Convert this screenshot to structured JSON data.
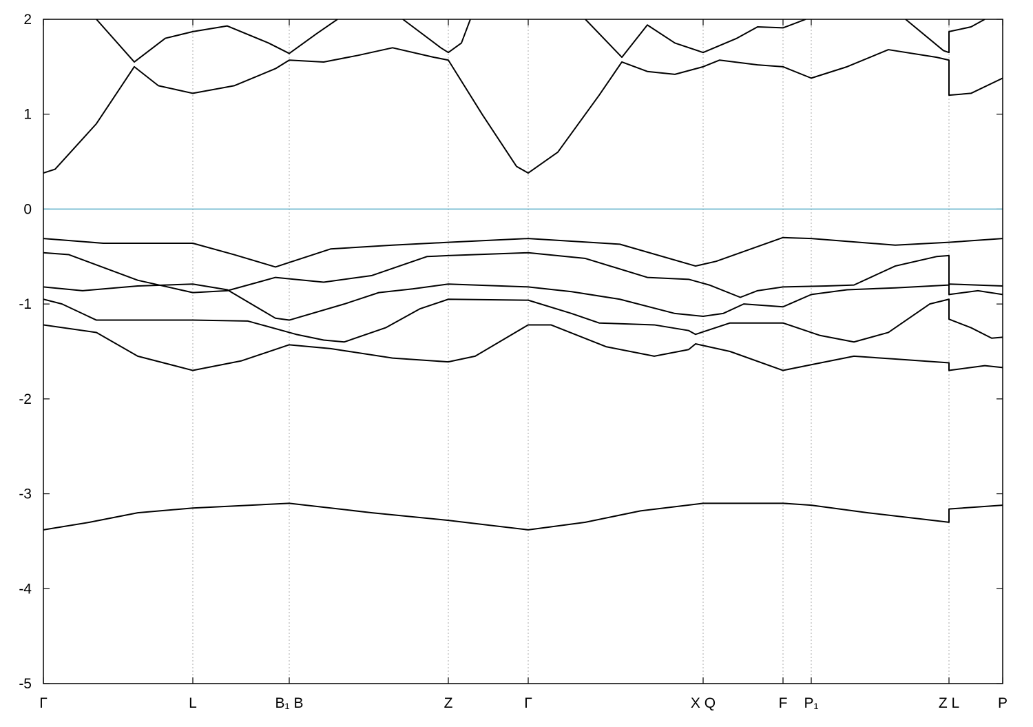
{
  "chart_data": {
    "type": "line",
    "xlim": [
      0,
      1393
    ],
    "ylim": [
      -5,
      2
    ],
    "yticks": [
      -5,
      -4,
      -3,
      -2,
      -1,
      0,
      1,
      2
    ],
    "xticks": [
      {
        "value": 0,
        "label": "Γ"
      },
      {
        "value": 217,
        "label": "L"
      },
      {
        "value": 357,
        "label": "B₁ B"
      },
      {
        "value": 588,
        "label": "Z"
      },
      {
        "value": 704,
        "label": "Γ"
      },
      {
        "value": 958,
        "label": "X Q"
      },
      {
        "value": 1074,
        "label": "F"
      },
      {
        "value": 1115,
        "label": "P₁"
      },
      {
        "value": 1315,
        "label": "Z L"
      },
      {
        "value": 1393,
        "label": "P"
      }
    ],
    "xgrid": true,
    "fermi_level": 0,
    "fermi_color": "#5aaec8",
    "series": [
      {
        "color": "#000000",
        "x": [
          0,
          87,
          217,
          277,
          337,
          417,
          507,
          588,
          704,
          837,
          947,
          977,
          1074,
          1115,
          1237,
          1315,
          1393
        ],
        "values": [
          -0.31,
          -0.36,
          -0.36,
          -0.48,
          -0.61,
          -0.42,
          -0.38,
          -0.35,
          -0.31,
          -0.37,
          -0.6,
          -0.55,
          -0.3,
          -0.31,
          -0.38,
          -0.35,
          -0.31
        ]
      },
      {
        "color": "#000000",
        "x": [
          0,
          37,
          137,
          217,
          267,
          337,
          407,
          477,
          557,
          588,
          704,
          787,
          877,
          937,
          967,
          1012,
          1037,
          1074,
          1137,
          1177,
          1237,
          1297,
          1315,
          1315,
          1357,
          1393
        ],
        "values": [
          -0.46,
          -0.48,
          -0.75,
          -0.88,
          -0.86,
          -0.72,
          -0.77,
          -0.7,
          -0.5,
          -0.49,
          -0.46,
          -0.52,
          -0.72,
          -0.74,
          -0.8,
          -0.93,
          -0.86,
          -0.82,
          -0.81,
          -0.8,
          -0.6,
          -0.5,
          -0.49,
          -0.9,
          -0.86,
          -0.9
        ]
      },
      {
        "color": "#000000",
        "x": [
          0,
          57,
          137,
          217,
          267,
          337,
          357,
          437,
          487,
          537,
          588,
          704,
          767,
          837,
          917,
          958,
          987,
          1017,
          1074,
          1115,
          1167,
          1237,
          1315,
          1315,
          1393
        ],
        "values": [
          -0.82,
          -0.86,
          -0.81,
          -0.79,
          -0.85,
          -1.15,
          -1.17,
          -1.0,
          -0.88,
          -0.84,
          -0.79,
          -0.82,
          -0.87,
          -0.95,
          -1.1,
          -1.13,
          -1.1,
          -1.0,
          -1.03,
          -0.9,
          -0.85,
          -0.83,
          -0.8,
          -0.79,
          -0.81
        ]
      },
      {
        "color": "#000000",
        "x": [
          0,
          27,
          77,
          217,
          297,
          367,
          407,
          437,
          497,
          547,
          588,
          704,
          767,
          807,
          887,
          937,
          947,
          997,
          1074,
          1127,
          1177,
          1227,
          1287,
          1315,
          1315,
          1347,
          1377,
          1393
        ],
        "values": [
          -0.95,
          -1.0,
          -1.17,
          -1.17,
          -1.18,
          -1.32,
          -1.38,
          -1.4,
          -1.25,
          -1.05,
          -0.95,
          -0.96,
          -1.1,
          -1.2,
          -1.22,
          -1.28,
          -1.32,
          -1.2,
          -1.2,
          -1.33,
          -1.4,
          -1.3,
          -1.0,
          -0.95,
          -1.16,
          -1.25,
          -1.36,
          -1.35
        ]
      },
      {
        "color": "#000000",
        "x": [
          0,
          77,
          137,
          217,
          287,
          357,
          417,
          507,
          588,
          627,
          704,
          737,
          817,
          887,
          937,
          947,
          997,
          1074,
          1115,
          1177,
          1237,
          1315,
          1315,
          1367,
          1393
        ],
        "values": [
          -1.22,
          -1.3,
          -1.55,
          -1.7,
          -1.6,
          -1.43,
          -1.47,
          -1.57,
          -1.61,
          -1.55,
          -1.22,
          -1.22,
          -1.45,
          -1.55,
          -1.48,
          -1.42,
          -1.5,
          -1.7,
          -1.64,
          -1.55,
          -1.58,
          -1.62,
          -1.7,
          -1.65,
          -1.67
        ]
      },
      {
        "color": "#000000",
        "x": [
          0,
          67,
          137,
          217,
          357,
          477,
          588,
          704,
          787,
          867,
          958,
          1074,
          1115,
          1197,
          1315,
          1315,
          1393
        ],
        "values": [
          -3.38,
          -3.3,
          -3.2,
          -3.15,
          -3.1,
          -3.2,
          -3.28,
          -3.38,
          -3.3,
          -3.18,
          -3.1,
          -3.1,
          -3.12,
          -3.2,
          -3.3,
          -3.16,
          -3.12
        ]
      },
      {
        "color": "#000000",
        "x": [
          0,
          17,
          77,
          132,
          167,
          217,
          277,
          337,
          357,
          407,
          457,
          507,
          567,
          588,
          637,
          687,
          704,
          747,
          807,
          840,
          877,
          917,
          958,
          982,
          1037,
          1074,
          1115,
          1167,
          1227,
          1297,
          1315,
          1315,
          1347,
          1393
        ],
        "values": [
          0.38,
          0.42,
          0.9,
          1.5,
          1.3,
          1.22,
          1.3,
          1.48,
          1.57,
          1.55,
          1.62,
          1.7,
          1.6,
          1.57,
          1.0,
          0.45,
          0.38,
          0.6,
          1.2,
          1.55,
          1.45,
          1.42,
          1.5,
          1.57,
          1.52,
          1.5,
          1.38,
          1.5,
          1.68,
          1.6,
          1.57,
          1.2,
          1.22,
          1.38
        ]
      },
      {
        "color": "#000000",
        "x": [
          77,
          132,
          177,
          217,
          267,
          327,
          357,
          397,
          427,
          474,
          522,
          577,
          588,
          607,
          620,
          703,
          787,
          840,
          877,
          917,
          958,
          1007,
          1037,
          1074,
          1107,
          1180,
          1252,
          1307,
          1315,
          1315,
          1347,
          1367
        ],
        "values": [
          2.0,
          1.55,
          1.8,
          1.87,
          1.93,
          1.75,
          1.64,
          1.85,
          2.0,
          null,
          2.0,
          1.7,
          1.65,
          1.75,
          2.0,
          null,
          2.0,
          1.6,
          1.94,
          1.75,
          1.65,
          1.8,
          1.92,
          1.91,
          2.0,
          null,
          2.0,
          1.67,
          1.65,
          1.87,
          1.92,
          2.0
        ]
      }
    ]
  }
}
